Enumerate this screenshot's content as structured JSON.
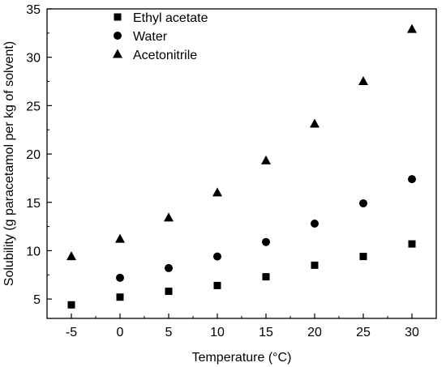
{
  "chart_data": {
    "type": "scatter",
    "title": "",
    "xlabel": "Temperature (°C)",
    "ylabel": "Solubility (g paracetamol per kg of solvent)",
    "xlim": [
      -7.5,
      32.5
    ],
    "ylim": [
      3,
      35
    ],
    "xticks": [
      -5,
      0,
      5,
      10,
      15,
      20,
      25,
      30
    ],
    "yticks": [
      5,
      10,
      15,
      20,
      25,
      30,
      35
    ],
    "grid": false,
    "legend_position": "top-left",
    "series": [
      {
        "name": "Ethyl acetate",
        "marker": "square",
        "x": [
          -5,
          0,
          5,
          10,
          15,
          20,
          25,
          30
        ],
        "y": [
          4.4,
          5.2,
          5.8,
          6.4,
          7.3,
          8.5,
          9.4,
          10.7
        ]
      },
      {
        "name": "Water",
        "marker": "circle",
        "x": [
          0,
          5,
          10,
          15,
          20,
          25,
          30
        ],
        "y": [
          7.2,
          8.2,
          9.4,
          10.9,
          12.8,
          14.9,
          17.4
        ]
      },
      {
        "name": "Acetonitrile",
        "marker": "triangle",
        "x": [
          -5,
          0,
          5,
          10,
          15,
          20,
          25,
          30
        ],
        "y": [
          9.4,
          11.2,
          13.4,
          16.0,
          19.3,
          23.1,
          27.5,
          32.9
        ]
      }
    ]
  }
}
